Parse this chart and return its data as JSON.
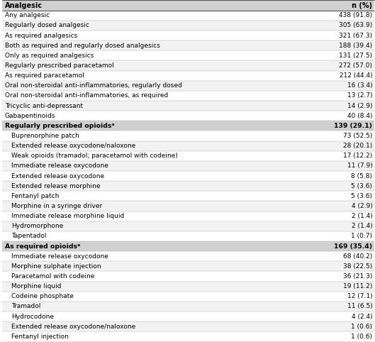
{
  "col1_header": "Analgesic",
  "col2_header": "n (%)",
  "rows": [
    {
      "label": "Any analgesic",
      "value": "438 (91.8)",
      "bold": false,
      "indent": 0
    },
    {
      "label": "Regularly dosed analgesic",
      "value": "305 (63.9)",
      "bold": false,
      "indent": 0
    },
    {
      "label": "As required analgesics",
      "value": "321 (67.3)",
      "bold": false,
      "indent": 0
    },
    {
      "label": "Both as required and regularly dosed analgesics",
      "value": "188 (39.4)",
      "bold": false,
      "indent": 0
    },
    {
      "label": "Only as required analgesics",
      "value": "131 (27.5)",
      "bold": false,
      "indent": 0
    },
    {
      "label": "Regularly prescribed paracetamol",
      "value": "272 (57.0)",
      "bold": false,
      "indent": 0
    },
    {
      "label": "As required paracetamol",
      "value": "212 (44.4)",
      "bold": false,
      "indent": 0
    },
    {
      "label": "Oral non-steroidal anti-inflammatories, regularly dosed",
      "value": "16 (3.4)",
      "bold": false,
      "indent": 0
    },
    {
      "label": "Oral non-steroidal anti-inflammatories, as required",
      "value": "13 (2.7)",
      "bold": false,
      "indent": 0
    },
    {
      "label": "Tricyclic anti-depressant",
      "value": "14 (2.9)",
      "bold": false,
      "indent": 0
    },
    {
      "label": "Gabapentinoids",
      "value": "40 (8.4)",
      "bold": false,
      "indent": 0
    },
    {
      "label": "Regularly prescribed opioidsᵃ",
      "value": "139 (29.1)",
      "bold": true,
      "indent": 0
    },
    {
      "label": "Buprenorphine patch",
      "value": "73 (52.5)",
      "bold": false,
      "indent": 1
    },
    {
      "label": "Extended release oxycodone/naloxone",
      "value": "28 (20.1)",
      "bold": false,
      "indent": 1
    },
    {
      "label": "Weak opioids (tramadol; paracetamol with codeine)",
      "value": "17 (12.2)",
      "bold": false,
      "indent": 1
    },
    {
      "label": "Immediate release oxycodone",
      "value": "11 (7.9)",
      "bold": false,
      "indent": 1
    },
    {
      "label": "Extended release oxycodone",
      "value": "8 (5.8)",
      "bold": false,
      "indent": 1
    },
    {
      "label": "Extended release morphine",
      "value": "5 (3.6)",
      "bold": false,
      "indent": 1
    },
    {
      "label": "Fentanyl patch",
      "value": "5 (3.6)",
      "bold": false,
      "indent": 1
    },
    {
      "label": "Morphine in a syringe driver",
      "value": "4 (2.9)",
      "bold": false,
      "indent": 1
    },
    {
      "label": "Immediate release morphine liquid",
      "value": "2 (1.4)",
      "bold": false,
      "indent": 1
    },
    {
      "label": "Hydromorphone",
      "value": "2 (1.4)",
      "bold": false,
      "indent": 1
    },
    {
      "label": "Tapentadol",
      "value": "1 (0.7)",
      "bold": false,
      "indent": 1
    },
    {
      "label": "As required opioidsᵃ",
      "value": "169 (35.4)",
      "bold": true,
      "indent": 0
    },
    {
      "label": "Immediate release oxycodone",
      "value": "68 (40.2)",
      "bold": false,
      "indent": 1
    },
    {
      "label": "Morphine sulphate injection",
      "value": "38 (22.5)",
      "bold": false,
      "indent": 1
    },
    {
      "label": "Paracetamol with codeine",
      "value": "36 (21.3)",
      "bold": false,
      "indent": 1
    },
    {
      "label": "Morphine liquid",
      "value": "19 (11.2)",
      "bold": false,
      "indent": 1
    },
    {
      "label": "Codeine phosphate",
      "value": "12 (7.1)",
      "bold": false,
      "indent": 1
    },
    {
      "label": "Tramadol",
      "value": "11 (6.5)",
      "bold": false,
      "indent": 1
    },
    {
      "label": "Hydrocodone",
      "value": "4 (2.4)",
      "bold": false,
      "indent": 1
    },
    {
      "label": "Extended release oxycodone/naloxone",
      "value": "1 (0.6)",
      "bold": false,
      "indent": 1
    },
    {
      "label": "Fentanyl injection",
      "value": "1 (0.6)",
      "bold": false,
      "indent": 1
    }
  ],
  "header_bg": "#d0d0d0",
  "row_bg_white": "#ffffff",
  "row_bg_gray": "#f2f2f2",
  "bold_row_bg": "#d0d0d0",
  "font_size": 6.5,
  "header_font_size": 7.0,
  "line_color": "#aaaaaa",
  "border_color": "#555555"
}
